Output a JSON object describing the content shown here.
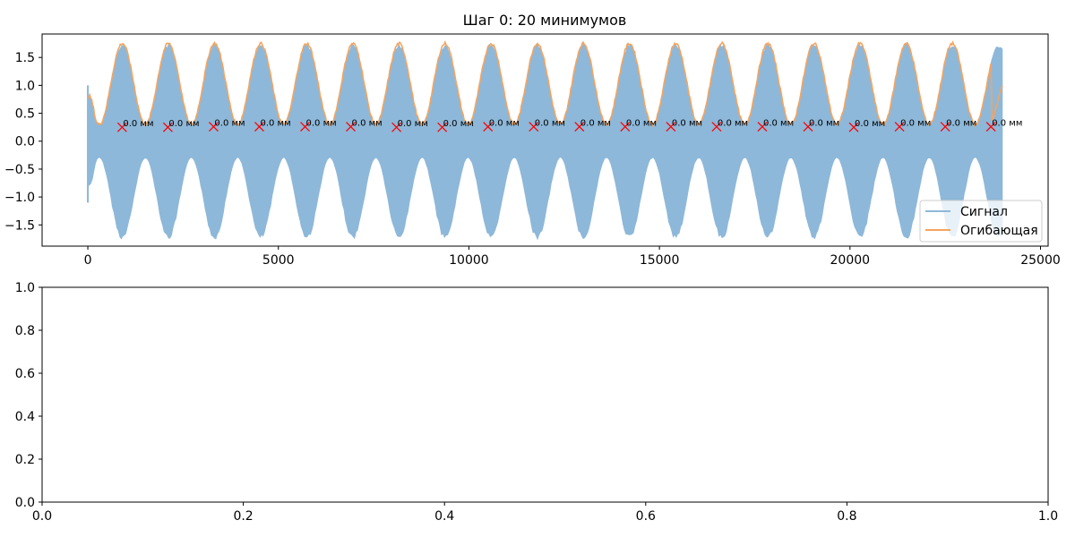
{
  "chart_data": [
    {
      "type": "line",
      "title": "Шаг 0: 20 минимумов",
      "xlabel": "",
      "ylabel": "",
      "xlim": [
        -1200,
        25200
      ],
      "ylim": [
        -1.88,
        1.92
      ],
      "xticks": [
        0,
        5000,
        10000,
        15000,
        20000,
        25000
      ],
      "xtick_labels": [
        "0",
        "5000",
        "10000",
        "15000",
        "20000",
        "25000"
      ],
      "yticks": [
        -1.5,
        -1.0,
        -0.5,
        0.0,
        0.5,
        1.0,
        1.5
      ],
      "ytick_labels": [
        "−1.5",
        "−1.0",
        "−0.5",
        "0.0",
        "0.5",
        "1.0",
        "1.5"
      ],
      "grid": false,
      "legend": {
        "placement": "lower-right"
      },
      "series": [
        {
          "name": "Сигнал",
          "color": "#8db8d9",
          "x_range": [
            0,
            24000
          ],
          "envelope_max": 1.75,
          "envelope_min": 0.3,
          "period_samples": 1210
        },
        {
          "name": "Огибающая",
          "color": "#f4a460",
          "x_range": [
            0,
            24000
          ]
        }
      ],
      "minima": {
        "marker_color": "#ff0000",
        "marker": "x",
        "points": [
          {
            "x": 900,
            "y": 0.25,
            "label": "0.0 мм"
          },
          {
            "x": 2100,
            "y": 0.25,
            "label": "0.0 мм"
          },
          {
            "x": 3300,
            "y": 0.26,
            "label": "0.0 мм"
          },
          {
            "x": 4500,
            "y": 0.26,
            "label": "0.0 мм"
          },
          {
            "x": 5700,
            "y": 0.26,
            "label": "0.0 мм"
          },
          {
            "x": 6900,
            "y": 0.26,
            "label": "0.0 мм"
          },
          {
            "x": 8100,
            "y": 0.25,
            "label": "0.0 мм"
          },
          {
            "x": 9300,
            "y": 0.25,
            "label": "0.0 мм"
          },
          {
            "x": 10500,
            "y": 0.26,
            "label": "0.0 мм"
          },
          {
            "x": 11700,
            "y": 0.26,
            "label": "0.0 мм"
          },
          {
            "x": 12900,
            "y": 0.26,
            "label": "0.0 мм"
          },
          {
            "x": 14100,
            "y": 0.26,
            "label": "0.0 мм"
          },
          {
            "x": 15300,
            "y": 0.26,
            "label": "0.0 мм"
          },
          {
            "x": 16500,
            "y": 0.26,
            "label": "0.0 мм"
          },
          {
            "x": 17700,
            "y": 0.26,
            "label": "0.0 мм"
          },
          {
            "x": 18900,
            "y": 0.26,
            "label": "0.0 мм"
          },
          {
            "x": 20100,
            "y": 0.25,
            "label": "0.0 мм"
          },
          {
            "x": 21300,
            "y": 0.26,
            "label": "0.0 мм"
          },
          {
            "x": 22500,
            "y": 0.26,
            "label": "0.0 мм"
          },
          {
            "x": 23700,
            "y": 0.26,
            "label": "0.0 мм"
          }
        ]
      }
    },
    {
      "type": "line",
      "title": "",
      "xlabel": "",
      "ylabel": "",
      "xlim": [
        0,
        1
      ],
      "ylim": [
        0,
        1
      ],
      "xticks": [
        0.0,
        0.2,
        0.4,
        0.6,
        0.8,
        1.0
      ],
      "xtick_labels": [
        "0.0",
        "0.2",
        "0.4",
        "0.6",
        "0.8",
        "1.0"
      ],
      "yticks": [
        0.0,
        0.2,
        0.4,
        0.6,
        0.8,
        1.0
      ],
      "ytick_labels": [
        "0.0",
        "0.2",
        "0.4",
        "0.6",
        "0.8",
        "1.0"
      ],
      "grid": false,
      "series": []
    }
  ]
}
